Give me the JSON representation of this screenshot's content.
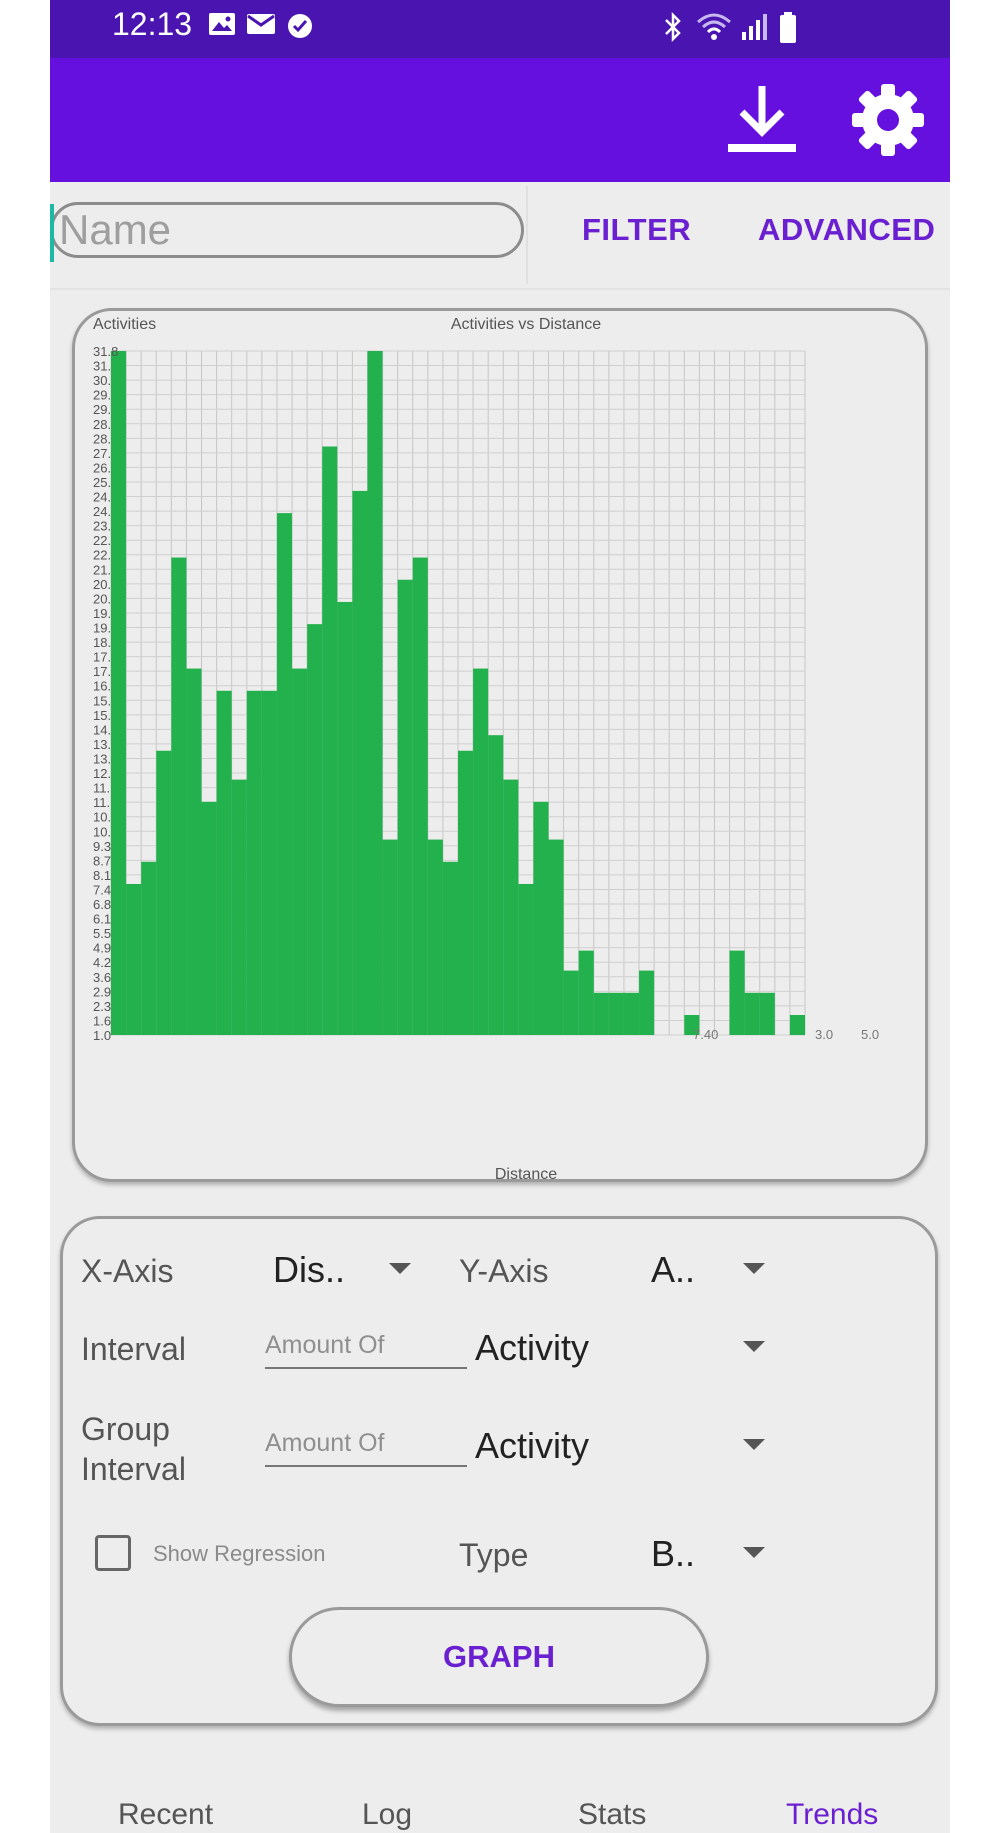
{
  "status_bar": {
    "time": "12:13",
    "left_icons": [
      "image-icon",
      "mail-icon",
      "check-circle-icon"
    ],
    "right_icons": [
      "bluetooth-icon",
      "wifi-icon",
      "signal-icon",
      "battery-icon"
    ]
  },
  "app_bar": {
    "color": "#6610e0",
    "actions": [
      "download-icon",
      "gear-icon"
    ]
  },
  "search": {
    "placeholder": "Name",
    "value": "",
    "filter_label": "FILTER",
    "advanced_label": "ADVANCED"
  },
  "chart_data": {
    "type": "bar",
    "title": "Activities vs Distance",
    "xlabel": "Distance",
    "ylabel": "Activities",
    "grid": true,
    "bar_color": "#22b14c",
    "y_ticks": [
      "31.8",
      "31.",
      "30.",
      "29.",
      "29.",
      "28.",
      "28.",
      "27.",
      "26.",
      "25.",
      "24.",
      "24.",
      "23.",
      "22.",
      "22.",
      "21.",
      "20.",
      "20.",
      "19.",
      "19.",
      "18.",
      "17.",
      "17.",
      "16.",
      "15.",
      "15.",
      "14.",
      "13.",
      "13.",
      "12.",
      "11.",
      "11.",
      "10.",
      "10.",
      "9.3",
      "8.7",
      "8.1",
      "7.4",
      "6.8",
      "6.1",
      "5.5",
      "4.9",
      "4.2",
      "3.6",
      "2.9",
      "2.3",
      "1.6",
      "1.0"
    ],
    "x_tick_labels_visible": [
      "7.40",
      "3.0",
      "5.0"
    ],
    "ylim": [
      1.0,
      31.8
    ],
    "values": [
      31.8,
      7.8,
      8.8,
      13.8,
      22.5,
      17.5,
      11.5,
      16.5,
      12.5,
      16.5,
      16.5,
      24.5,
      17.5,
      19.5,
      27.5,
      20.5,
      25.5,
      31.8,
      9.8,
      21.5,
      22.5,
      9.8,
      8.8,
      13.8,
      17.5,
      14.5,
      12.5,
      7.8,
      11.5,
      9.8,
      3.9,
      4.8,
      2.9,
      2.9,
      2.9,
      3.9,
      0,
      0,
      1.9,
      0,
      0,
      4.8,
      2.9,
      2.9,
      0,
      1.9
    ]
  },
  "options": {
    "x_axis": {
      "label": "X-Axis",
      "value": "Dis.."
    },
    "y_axis": {
      "label": "Y-Axis",
      "value": "A.."
    },
    "interval": {
      "label": "Interval",
      "placeholder": "Amount Of",
      "unit": "Activity"
    },
    "group_interval": {
      "label_line1": "Group",
      "label_line2": "Interval",
      "placeholder": "Amount Of",
      "unit": "Activity"
    },
    "show_regression": {
      "label": "Show Regression",
      "checked": false
    },
    "type": {
      "label": "Type",
      "value": "B.."
    },
    "graph_button": "GRAPH"
  },
  "bottom_nav": {
    "tabs": [
      "Recent",
      "Log",
      "Stats",
      "Trends"
    ],
    "active": "Trends"
  }
}
